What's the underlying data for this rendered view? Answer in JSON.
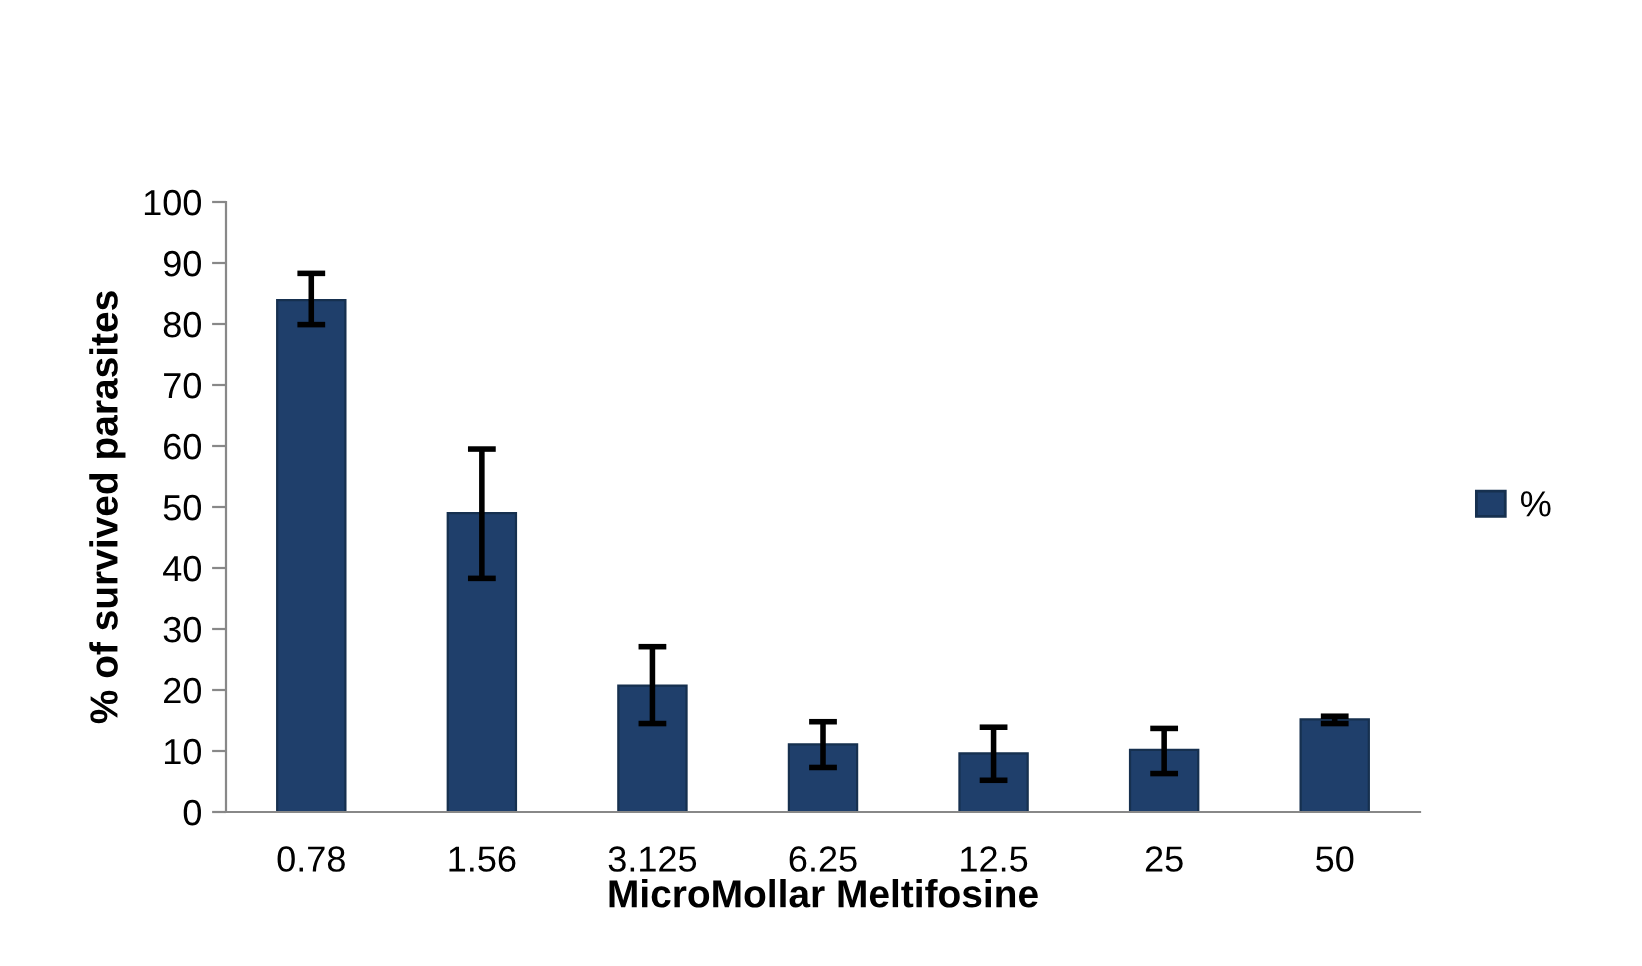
{
  "chart_data": {
    "type": "bar",
    "xlabel": "MicroMollar Meltifosine",
    "ylabel": "% of survived parasites",
    "categories": [
      "0.78",
      "1.56",
      "3.125",
      "6.25",
      "12.5",
      "25",
      "50"
    ],
    "series": [
      {
        "name": "%",
        "color": "#1f3f6b",
        "values": [
          83.9,
          49.0,
          20.7,
          11.1,
          9.6,
          10.2,
          15.2
        ],
        "errors": [
          [
            79.9,
            88.3
          ],
          [
            38.3,
            59.5
          ],
          [
            14.5,
            27.1
          ],
          [
            7.3,
            14.8
          ],
          [
            5.2,
            13.9
          ],
          [
            6.3,
            13.7
          ],
          [
            14.5,
            15.7
          ]
        ]
      }
    ],
    "ylim": [
      0,
      100
    ],
    "yticks": [
      0,
      10,
      20,
      30,
      40,
      50,
      60,
      70,
      80,
      90,
      100
    ],
    "grid": false,
    "legend": "right"
  }
}
